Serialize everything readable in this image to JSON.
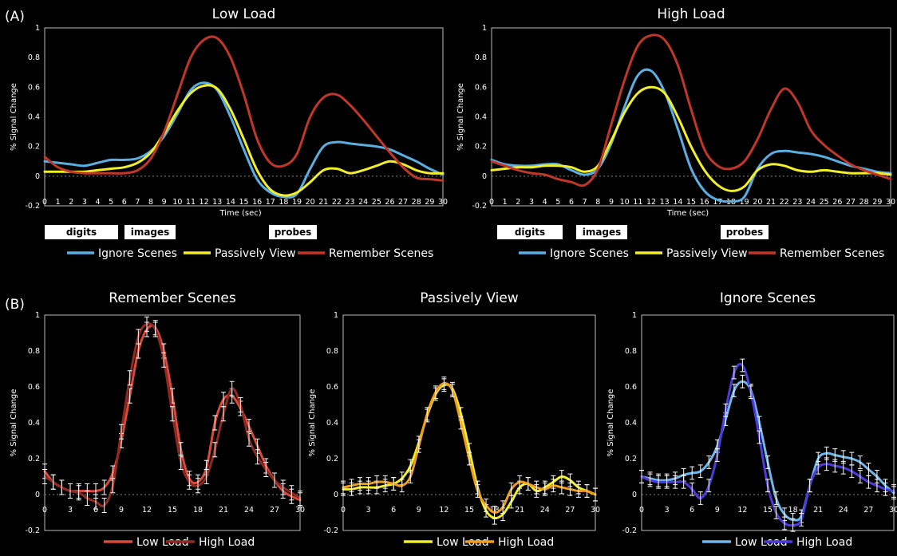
{
  "figure": {
    "section_a_label": "(A)",
    "section_b_label": "(B)"
  },
  "colors": {
    "ignore": "#5aaee2",
    "passive": "#f2ee27",
    "remember": "#c0372a",
    "red_low": "#d84a3c",
    "red_high": "#8e2a22",
    "yellow_low": "#f2ee27",
    "yellow_high": "#ef9d1e",
    "blue_low": "#6fb7ea",
    "blue_high": "#4c3bd9"
  },
  "chart_data": [
    {
      "id": "A-low",
      "type": "line",
      "title": "Low Load",
      "xlabel": "Time (sec)",
      "ylabel": "% Signal Change",
      "xlim": [
        0,
        30
      ],
      "ylim": [
        -0.2,
        1
      ],
      "x_ticks": [
        "0",
        "1",
        "2",
        "3",
        "4",
        "5",
        "6",
        "7",
        "8",
        "9",
        "10",
        "11",
        "12",
        "13",
        "14",
        "15",
        "16",
        "17",
        "18",
        "19",
        "20",
        "21",
        "22",
        "23",
        "24",
        "25",
        "26",
        "27",
        "28",
        "29",
        "30"
      ],
      "y_ticks": [
        "-0.2",
        "0",
        "0.2",
        "0.4",
        "0.6",
        "0.8",
        "1"
      ],
      "events": [
        {
          "label": "digits"
        },
        {
          "label": "images"
        },
        {
          "label": "probes"
        }
      ],
      "x": [
        0,
        1,
        2,
        3,
        4,
        5,
        6,
        7,
        8,
        9,
        10,
        11,
        12,
        13,
        14,
        15,
        16,
        17,
        18,
        19,
        20,
        21,
        22,
        23,
        24,
        25,
        26,
        27,
        28,
        29,
        30
      ],
      "series": [
        {
          "name": "Ignore Scenes",
          "color_key": "ignore",
          "values": [
            0.1,
            0.09,
            0.08,
            0.07,
            0.09,
            0.11,
            0.11,
            0.12,
            0.17,
            0.27,
            0.42,
            0.58,
            0.63,
            0.58,
            0.4,
            0.18,
            -0.02,
            -0.11,
            -0.14,
            -0.12,
            0.05,
            0.2,
            0.23,
            0.22,
            0.21,
            0.2,
            0.18,
            0.14,
            0.1,
            0.05,
            0.01
          ]
        },
        {
          "name": "Passively View",
          "color_key": "passive",
          "values": [
            0.03,
            0.03,
            0.03,
            0.03,
            0.04,
            0.05,
            0.06,
            0.09,
            0.16,
            0.29,
            0.44,
            0.56,
            0.61,
            0.59,
            0.45,
            0.25,
            0.04,
            -0.09,
            -0.13,
            -0.11,
            -0.04,
            0.04,
            0.05,
            0.02,
            0.04,
            0.07,
            0.1,
            0.08,
            0.04,
            0.02,
            0.02
          ]
        },
        {
          "name": "Remember Scenes",
          "color_key": "remember",
          "values": [
            0.13,
            0.06,
            0.03,
            0.02,
            0.02,
            0.02,
            0.02,
            0.04,
            0.12,
            0.3,
            0.55,
            0.8,
            0.92,
            0.93,
            0.8,
            0.55,
            0.25,
            0.09,
            0.07,
            0.15,
            0.4,
            0.53,
            0.55,
            0.48,
            0.38,
            0.27,
            0.16,
            0.06,
            -0.01,
            -0.02,
            -0.03
          ]
        }
      ],
      "legend": "bottom"
    },
    {
      "id": "A-high",
      "type": "line",
      "title": "High Load",
      "xlabel": "Time (sec)",
      "ylabel": "% Signal Change",
      "xlim": [
        0,
        30
      ],
      "ylim": [
        -0.2,
        1
      ],
      "x_ticks": [
        "0",
        "1",
        "2",
        "3",
        "4",
        "5",
        "6",
        "7",
        "8",
        "9",
        "10",
        "11",
        "12",
        "13",
        "14",
        "15",
        "16",
        "17",
        "18",
        "19",
        "20",
        "21",
        "22",
        "23",
        "24",
        "25",
        "26",
        "27",
        "28",
        "29",
        "30"
      ],
      "y_ticks": [
        "-0.2",
        "0",
        "0.2",
        "0.4",
        "0.6",
        "0.8",
        "1"
      ],
      "events": [
        {
          "label": "digits"
        },
        {
          "label": "images"
        },
        {
          "label": "probes"
        }
      ],
      "x": [
        0,
        1,
        2,
        3,
        4,
        5,
        6,
        7,
        8,
        9,
        10,
        11,
        12,
        13,
        14,
        15,
        16,
        17,
        18,
        19,
        20,
        21,
        22,
        23,
        24,
        25,
        26,
        27,
        28,
        29,
        30
      ],
      "series": [
        {
          "name": "Ignore Scenes",
          "color_key": "ignore",
          "values": [
            0.11,
            0.08,
            0.07,
            0.07,
            0.08,
            0.08,
            0.04,
            0.01,
            0.05,
            0.22,
            0.47,
            0.68,
            0.71,
            0.57,
            0.32,
            0.05,
            -0.1,
            -0.16,
            -0.17,
            -0.14,
            0.05,
            0.15,
            0.17,
            0.16,
            0.15,
            0.13,
            0.1,
            0.07,
            0.05,
            0.03,
            0.02
          ]
        },
        {
          "name": "Passively View",
          "color_key": "passive",
          "values": [
            0.04,
            0.05,
            0.06,
            0.06,
            0.07,
            0.07,
            0.06,
            0.03,
            0.07,
            0.24,
            0.43,
            0.56,
            0.6,
            0.56,
            0.4,
            0.2,
            0.04,
            -0.06,
            -0.1,
            -0.07,
            0.04,
            0.08,
            0.07,
            0.04,
            0.03,
            0.04,
            0.03,
            0.02,
            0.02,
            0.02,
            0.01
          ]
        },
        {
          "name": "Remember Scenes",
          "color_key": "remember",
          "values": [
            0.1,
            0.07,
            0.04,
            0.02,
            0.01,
            -0.02,
            -0.04,
            -0.06,
            0.05,
            0.35,
            0.65,
            0.88,
            0.95,
            0.92,
            0.75,
            0.45,
            0.18,
            0.07,
            0.05,
            0.1,
            0.25,
            0.45,
            0.59,
            0.5,
            0.31,
            0.21,
            0.14,
            0.08,
            0.04,
            0.01,
            -0.02
          ]
        }
      ],
      "legend": "bottom"
    },
    {
      "id": "B-remember",
      "type": "line",
      "title": "Remember Scenes",
      "ylabel": "% Signal Change",
      "xlim": [
        0,
        30
      ],
      "ylim": [
        -0.2,
        1
      ],
      "x_ticks": [
        "0",
        "3",
        "6",
        "9",
        "12",
        "15",
        "18",
        "21",
        "24",
        "27",
        "30"
      ],
      "y_ticks": [
        "-0.2",
        "0",
        "0.2",
        "0.4",
        "0.6",
        "0.8",
        "1"
      ],
      "x": [
        0,
        1,
        2,
        3,
        4,
        5,
        6,
        7,
        8,
        9,
        10,
        11,
        12,
        13,
        14,
        15,
        16,
        17,
        18,
        19,
        20,
        21,
        22,
        23,
        24,
        25,
        26,
        27,
        28,
        29,
        30
      ],
      "series": [
        {
          "name": "Low Load",
          "color_key": "red_low",
          "error": 0.04,
          "values": [
            0.13,
            0.07,
            0.04,
            0.02,
            0.02,
            0.02,
            0.02,
            0.04,
            0.12,
            0.3,
            0.55,
            0.8,
            0.92,
            0.93,
            0.8,
            0.55,
            0.25,
            0.09,
            0.07,
            0.15,
            0.4,
            0.53,
            0.55,
            0.48,
            0.38,
            0.27,
            0.16,
            0.08,
            0.02,
            -0.01,
            -0.03
          ]
        },
        {
          "name": "High Load",
          "color_key": "red_high",
          "error": 0.04,
          "values": [
            0.1,
            0.07,
            0.04,
            0.02,
            0.01,
            -0.02,
            -0.04,
            -0.06,
            0.05,
            0.35,
            0.65,
            0.88,
            0.95,
            0.92,
            0.75,
            0.45,
            0.18,
            0.07,
            0.05,
            0.1,
            0.25,
            0.45,
            0.59,
            0.5,
            0.31,
            0.21,
            0.14,
            0.08,
            0.04,
            0.01,
            -0.02
          ]
        }
      ],
      "legend": "bottom"
    },
    {
      "id": "B-passive",
      "type": "line",
      "title": "Passively View",
      "ylabel": "% Signal Change",
      "xlim": [
        0,
        30
      ],
      "ylim": [
        -0.2,
        1
      ],
      "x_ticks": [
        "0",
        "3",
        "6",
        "9",
        "12",
        "15",
        "18",
        "21",
        "24",
        "27",
        "30"
      ],
      "y_ticks": [
        "-0.2",
        "0",
        "0.2",
        "0.4",
        "0.6",
        "0.8",
        "1"
      ],
      "x": [
        0,
        1,
        2,
        3,
        4,
        5,
        6,
        7,
        8,
        9,
        10,
        11,
        12,
        13,
        14,
        15,
        16,
        17,
        18,
        19,
        20,
        21,
        22,
        23,
        24,
        25,
        26,
        27,
        28,
        29,
        30
      ],
      "series": [
        {
          "name": "Low Load",
          "color_key": "yellow_low",
          "error": 0.035,
          "values": [
            0.03,
            0.03,
            0.04,
            0.04,
            0.04,
            0.05,
            0.06,
            0.09,
            0.16,
            0.29,
            0.44,
            0.56,
            0.61,
            0.59,
            0.45,
            0.25,
            0.04,
            -0.09,
            -0.13,
            -0.11,
            -0.04,
            0.04,
            0.06,
            0.02,
            0.04,
            0.07,
            0.1,
            0.08,
            0.04,
            0.02,
            0.0
          ]
        },
        {
          "name": "High Load",
          "color_key": "yellow_high",
          "error": 0.035,
          "values": [
            0.04,
            0.05,
            0.06,
            0.06,
            0.07,
            0.07,
            0.06,
            0.05,
            0.1,
            0.27,
            0.45,
            0.57,
            0.62,
            0.58,
            0.4,
            0.2,
            0.02,
            -0.06,
            -0.1,
            -0.07,
            0.03,
            0.07,
            0.06,
            0.04,
            0.03,
            0.05,
            0.04,
            0.03,
            0.02,
            0.02,
            0.0
          ]
        }
      ],
      "legend": "bottom"
    },
    {
      "id": "B-ignore",
      "type": "line",
      "title": "Ignore Scenes",
      "ylabel": "% Signal Change",
      "xlim": [
        0,
        30
      ],
      "ylim": [
        -0.2,
        1
      ],
      "x_ticks": [
        "0",
        "3",
        "6",
        "9",
        "12",
        "15",
        "18",
        "21",
        "24",
        "27",
        "30"
      ],
      "y_ticks": [
        "-0.2",
        "0",
        "0.2",
        "0.4",
        "0.6",
        "0.8",
        "1"
      ],
      "x": [
        0,
        1,
        2,
        3,
        4,
        5,
        6,
        7,
        8,
        9,
        10,
        11,
        12,
        13,
        14,
        15,
        16,
        17,
        18,
        19,
        20,
        21,
        22,
        23,
        24,
        25,
        26,
        27,
        28,
        29,
        30
      ],
      "series": [
        {
          "name": "Low Load",
          "color_key": "blue_low",
          "error": 0.035,
          "values": [
            0.1,
            0.09,
            0.08,
            0.08,
            0.09,
            0.11,
            0.12,
            0.13,
            0.18,
            0.27,
            0.42,
            0.58,
            0.63,
            0.58,
            0.4,
            0.18,
            -0.02,
            -0.11,
            -0.14,
            -0.12,
            0.05,
            0.2,
            0.23,
            0.22,
            0.21,
            0.2,
            0.18,
            0.14,
            0.1,
            0.05,
            0.01
          ]
        },
        {
          "name": "High Load",
          "color_key": "blue_high",
          "error": 0.035,
          "values": [
            0.1,
            0.08,
            0.07,
            0.07,
            0.07,
            0.07,
            0.03,
            -0.02,
            0.05,
            0.22,
            0.47,
            0.68,
            0.72,
            0.57,
            0.32,
            0.05,
            -0.1,
            -0.16,
            -0.17,
            -0.14,
            0.05,
            0.15,
            0.17,
            0.16,
            0.15,
            0.13,
            0.1,
            0.07,
            0.05,
            0.03,
            0.02
          ]
        }
      ],
      "legend": "bottom"
    }
  ]
}
